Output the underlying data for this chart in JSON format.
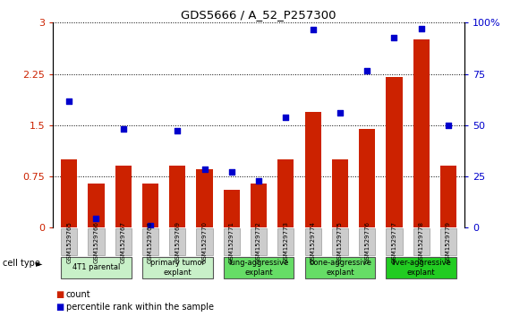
{
  "title": "GDS5666 / A_52_P257300",
  "samples": [
    "GSM1529765",
    "GSM1529766",
    "GSM1529767",
    "GSM1529768",
    "GSM1529769",
    "GSM1529770",
    "GSM1529771",
    "GSM1529772",
    "GSM1529773",
    "GSM1529774",
    "GSM1529775",
    "GSM1529776",
    "GSM1529777",
    "GSM1529778",
    "GSM1529779"
  ],
  "counts": [
    1.0,
    0.65,
    0.9,
    0.65,
    0.9,
    0.85,
    0.55,
    0.65,
    1.0,
    1.7,
    1.0,
    1.45,
    2.2,
    2.75,
    0.9
  ],
  "percentile_ranks": [
    1.85,
    0.13,
    1.45,
    0.03,
    1.42,
    0.85,
    0.82,
    0.68,
    1.62,
    2.9,
    1.68,
    2.3,
    2.78,
    2.92,
    1.5
  ],
  "bar_color": "#cc2200",
  "dot_color": "#0000cc",
  "ylim": [
    0,
    3
  ],
  "yticks": [
    0,
    0.75,
    1.5,
    2.25,
    3
  ],
  "ytick_labels_left": [
    "0",
    "0.75",
    "1.5",
    "2.25",
    "3"
  ],
  "ytick_labels_right": [
    "0",
    "25",
    "50",
    "75",
    "100%"
  ],
  "cell_groups": [
    {
      "label": "4T1 parental",
      "samples": [
        "GSM1529765",
        "GSM1529766",
        "GSM1529767"
      ],
      "color": "#c8f0c8"
    },
    {
      "label": "primary tumor\nexplant",
      "samples": [
        "GSM1529768",
        "GSM1529769",
        "GSM1529770"
      ],
      "color": "#c8f0c8"
    },
    {
      "label": "lung-aggressive\nexplant",
      "samples": [
        "GSM1529771",
        "GSM1529772",
        "GSM1529773"
      ],
      "color": "#66dd66"
    },
    {
      "label": "bone-aggressive\nexplant",
      "samples": [
        "GSM1529774",
        "GSM1529775",
        "GSM1529776"
      ],
      "color": "#66dd66"
    },
    {
      "label": "liver-aggressive\nexplant",
      "samples": [
        "GSM1529777",
        "GSM1529778",
        "GSM1529779"
      ],
      "color": "#22cc22"
    }
  ],
  "cell_type_label": "cell type",
  "legend_count_label": "count",
  "legend_percentile_label": "percentile rank within the sample",
  "bg_color": "#ffffff",
  "sample_bg": "#cccccc"
}
